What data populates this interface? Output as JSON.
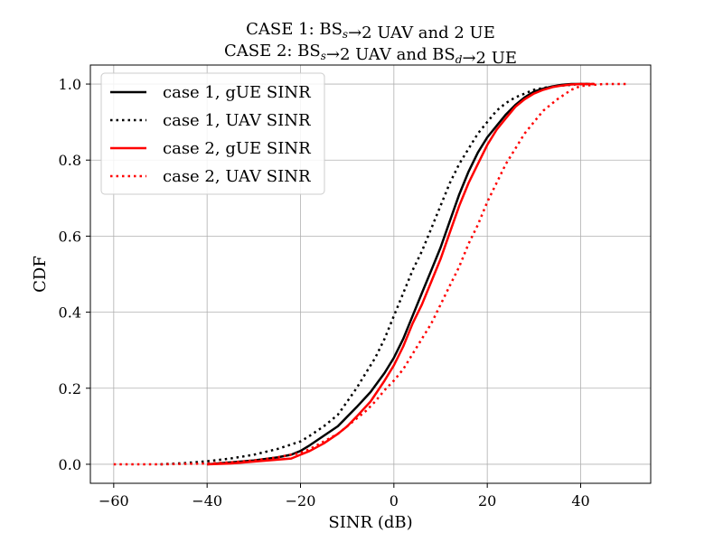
{
  "chart_data": {
    "type": "line",
    "title_lines": [
      {
        "pre": "CASE 1: BS",
        "sub1": "s",
        "mid": "→2 UAV and 2 UE",
        "sub2": "",
        "post": ""
      },
      {
        "pre": "CASE 2: BS",
        "sub1": "s",
        "mid": "→2 UAV and BS",
        "sub2": "d",
        "post": "→2 UE"
      }
    ],
    "xlabel": "SINR (dB)",
    "ylabel": "CDF",
    "xlim": [
      -65,
      55
    ],
    "ylim": [
      -0.05,
      1.05
    ],
    "xticks": [
      -60,
      -40,
      -20,
      0,
      20,
      40
    ],
    "xtick_labels": [
      "−60",
      "−40",
      "−20",
      "0",
      "20",
      "40"
    ],
    "yticks": [
      0.0,
      0.2,
      0.4,
      0.6,
      0.8,
      1.0
    ],
    "ytick_labels": [
      "0.0",
      "0.2",
      "0.4",
      "0.6",
      "0.8",
      "1.0"
    ],
    "grid": true,
    "legend_position": "top-left",
    "series": [
      {
        "name": "case 1, gUE SINR",
        "color": "#000000",
        "style": "solid",
        "x": [
          -40,
          -35,
          -30,
          -25,
          -22,
          -20,
          -18,
          -15,
          -12,
          -10,
          -8,
          -5,
          -2,
          0,
          2,
          4,
          6,
          8,
          10,
          12,
          14,
          16,
          18,
          20,
          22,
          24,
          26,
          28,
          30,
          32,
          34,
          36,
          38,
          40,
          42
        ],
        "y": [
          0.0,
          0.005,
          0.01,
          0.018,
          0.025,
          0.035,
          0.05,
          0.075,
          0.1,
          0.125,
          0.15,
          0.19,
          0.24,
          0.28,
          0.33,
          0.39,
          0.45,
          0.51,
          0.57,
          0.64,
          0.71,
          0.77,
          0.82,
          0.86,
          0.89,
          0.92,
          0.945,
          0.965,
          0.98,
          0.988,
          0.994,
          0.998,
          1.0,
          1.0,
          1.0
        ]
      },
      {
        "name": "case 1, UAV SINR",
        "color": "#000000",
        "style": "dotted",
        "x": [
          -50,
          -45,
          -40,
          -35,
          -30,
          -25,
          -20,
          -18,
          -15,
          -12,
          -10,
          -8,
          -6,
          -4,
          -2,
          0,
          2,
          4,
          6,
          8,
          10,
          12,
          14,
          16,
          18,
          20,
          22,
          24,
          26,
          28,
          30,
          32,
          35,
          40,
          43
        ],
        "y": [
          0.0,
          0.003,
          0.008,
          0.015,
          0.025,
          0.04,
          0.06,
          0.075,
          0.1,
          0.13,
          0.165,
          0.2,
          0.24,
          0.28,
          0.33,
          0.39,
          0.45,
          0.51,
          0.56,
          0.62,
          0.68,
          0.74,
          0.79,
          0.83,
          0.87,
          0.9,
          0.93,
          0.95,
          0.965,
          0.975,
          0.985,
          0.99,
          0.995,
          1.0,
          1.0
        ]
      },
      {
        "name": "case 2, gUE SINR",
        "color": "#ff0000",
        "style": "solid",
        "x": [
          -40,
          -35,
          -30,
          -25,
          -22,
          -20,
          -18,
          -15,
          -12,
          -10,
          -8,
          -5,
          -2,
          0,
          2,
          4,
          6,
          8,
          10,
          12,
          14,
          16,
          18,
          20,
          22,
          24,
          26,
          28,
          30,
          32,
          34,
          36,
          38,
          40,
          43
        ],
        "y": [
          0.0,
          0.002,
          0.007,
          0.012,
          0.015,
          0.025,
          0.035,
          0.055,
          0.08,
          0.1,
          0.125,
          0.165,
          0.22,
          0.26,
          0.31,
          0.37,
          0.42,
          0.48,
          0.54,
          0.61,
          0.68,
          0.74,
          0.79,
          0.84,
          0.88,
          0.91,
          0.94,
          0.96,
          0.975,
          0.985,
          0.992,
          0.996,
          0.999,
          1.0,
          1.0
        ]
      },
      {
        "name": "case 2, UAV SINR",
        "color": "#ff0000",
        "style": "dotted",
        "x": [
          -60,
          -50,
          -40,
          -35,
          -30,
          -25,
          -20,
          -18,
          -15,
          -12,
          -10,
          -8,
          -6,
          -4,
          -2,
          0,
          2,
          4,
          6,
          8,
          10,
          12,
          14,
          16,
          18,
          20,
          22,
          24,
          26,
          28,
          30,
          32,
          35,
          38,
          40,
          45,
          50
        ],
        "y": [
          0.0,
          0.0,
          0.002,
          0.005,
          0.01,
          0.018,
          0.03,
          0.04,
          0.06,
          0.08,
          0.1,
          0.12,
          0.14,
          0.165,
          0.195,
          0.22,
          0.25,
          0.29,
          0.33,
          0.37,
          0.42,
          0.47,
          0.52,
          0.58,
          0.63,
          0.69,
          0.74,
          0.79,
          0.83,
          0.87,
          0.9,
          0.93,
          0.96,
          0.985,
          0.995,
          1.0,
          1.0
        ]
      }
    ]
  }
}
